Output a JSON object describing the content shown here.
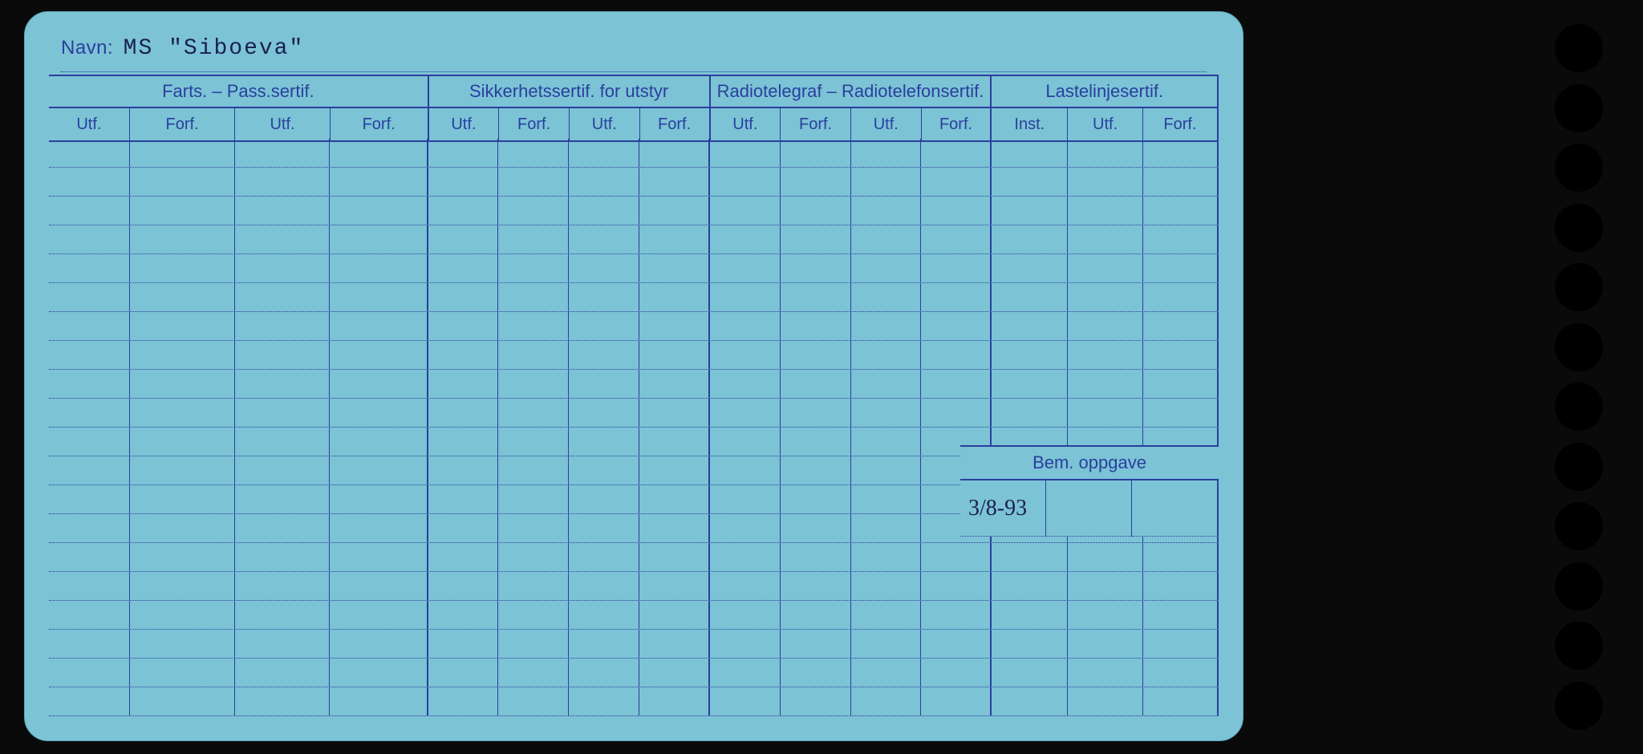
{
  "colors": {
    "card_bg": "#7cc3d5",
    "ink": "#2a3f9e",
    "text_typed": "#1a2050",
    "page_bg": "#0a0a0a"
  },
  "navn": {
    "label": "Navn:",
    "value": "MS \"Siboeva\""
  },
  "groups": [
    {
      "title": "Farts. – Pass.sertif.",
      "cols": [
        "Utf.",
        "Forf.",
        "Utf.",
        "Forf."
      ],
      "widths": [
        115,
        150,
        135,
        140
      ]
    },
    {
      "title": "Sikkerhetssertif. for utstyr",
      "cols": [
        "Utf.",
        "Forf.",
        "Utf.",
        "Forf."
      ],
      "widths": [
        100,
        100,
        100,
        100
      ]
    },
    {
      "title": "Radiotelegraf – Radiotelefonsertif.",
      "cols": [
        "Utf.",
        "Forf.",
        "Utf.",
        "Forf."
      ],
      "widths": [
        100,
        100,
        100,
        100
      ]
    },
    {
      "title": "Lastelinjesertif.",
      "cols": [
        "Inst.",
        "Utf.",
        "Forf."
      ],
      "widths": [
        108,
        107,
        107
      ]
    }
  ],
  "body_row_count": 20,
  "bem": {
    "label": "Bem. oppgave",
    "value": "3/8-93"
  },
  "holes_count": 12
}
